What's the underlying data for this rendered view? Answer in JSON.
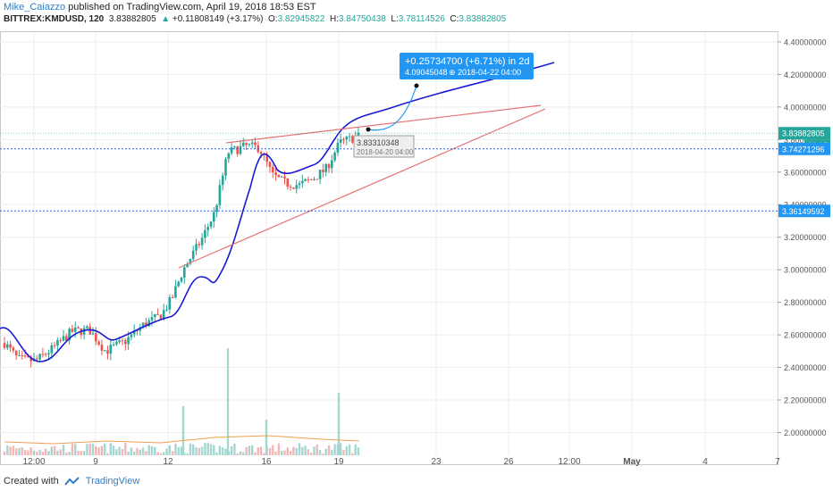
{
  "header": {
    "author": "Mike_Caiazzo",
    "published_text": "published on TradingView.com, April 19, 2018 18:53 EST",
    "symbol": "BITTREX:KMDUSD, 120",
    "last_price": "3.83882805",
    "change_arrow": "▲",
    "change": "+0.11808149 (+3.17%)",
    "o_label": "O:",
    "o_value": "3.82945822",
    "h_label": "H:",
    "h_value": "3.84750438",
    "l_label": "L:",
    "l_value": "3.78114526",
    "c_label": "C:",
    "c_value": "3.83882805"
  },
  "footer": {
    "created_with": "Created with",
    "brand": "TradingView"
  },
  "colors": {
    "up": "#26a69a",
    "down": "#ef5350",
    "curve": "#1a1ad4",
    "trendline": "#e57373",
    "dotted_line": "#2962ff",
    "price_tag": "#26a69a",
    "level_tag": "#2196f3",
    "callout": "#2196f3"
  },
  "chart_data": {
    "type": "candlestick",
    "y_axis": {
      "range": [
        1.86,
        4.46
      ],
      "ticks": [
        "4.40000000",
        "4.20000000",
        "4.00000000",
        "3.80000000",
        "3.60000000",
        "3.40000000",
        "3.20000000",
        "3.00000000",
        "2.80000000",
        "2.60000000",
        "2.40000000",
        "2.20000000",
        "2.00000000"
      ]
    },
    "x_axis": {
      "ticks": [
        "12:00",
        "9",
        "12",
        "16",
        "19",
        "23",
        "26",
        "12:00",
        "May",
        "4",
        "7"
      ]
    },
    "grid": true,
    "price_tags": [
      {
        "label": "3.83882805",
        "value": 3.8388,
        "sublabel": "06:17"
      },
      {
        "label": "3.74271296",
        "value": 3.7427
      },
      {
        "label": "3.36149592",
        "value": 3.3615
      }
    ],
    "horizontal_levels": [
      3.7427,
      3.3615
    ],
    "prediction": {
      "change_label": "+0.25734700 (+6.71%) in 2d",
      "target_label": "4.09045048",
      "target_date": "2018-04-22  04:00",
      "start_label": "3.83310348",
      "start_date": "2018-04-20  04:00"
    },
    "candles_ohlc_sample": "synthetic approximation of KMD/USD 2h candles, rising from ~2.45 to ~3.84"
  }
}
